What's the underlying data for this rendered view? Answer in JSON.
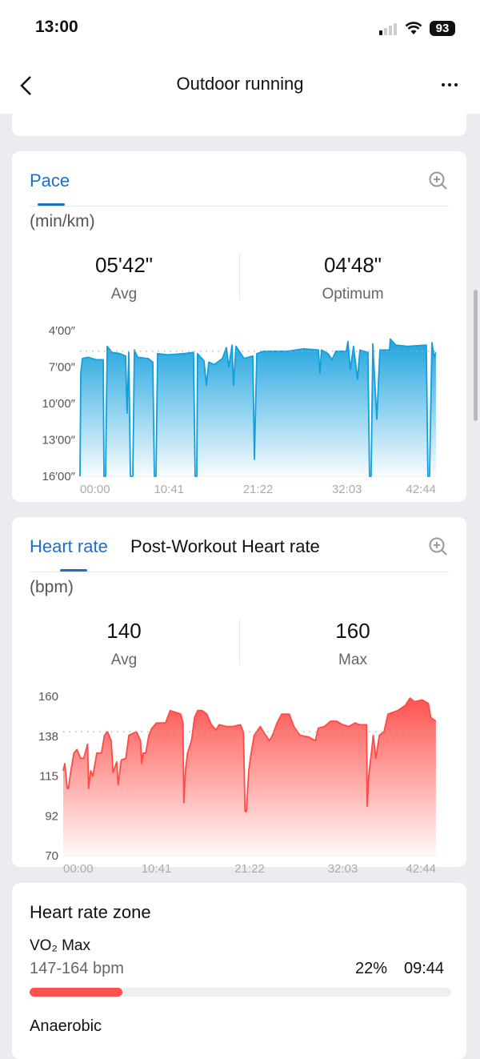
{
  "status_bar": {
    "time": "13:00",
    "battery": "93"
  },
  "header": {
    "title": "Outdoor running"
  },
  "pace": {
    "tab": "Pace",
    "unit": "(min/km)",
    "avg_value": "05'42\"",
    "avg_label": "Avg",
    "opt_value": "04'48\"",
    "opt_label": "Optimum"
  },
  "heart": {
    "tab": "Heart rate",
    "tab2": "Post-Workout Heart rate",
    "unit": "(bpm)",
    "avg_value": "140",
    "avg_label": "Avg",
    "max_value": "160",
    "max_label": "Max"
  },
  "zone": {
    "title": "Heart rate zone",
    "items": [
      {
        "name": "VO₂ Max",
        "range": "147-164 bpm",
        "percent": "22%",
        "duration": "09:44",
        "fraction": 0.22,
        "color": "#fd524f"
      },
      {
        "name": "Anaerobic"
      }
    ]
  },
  "colors": {
    "accent": "#1a6fd0",
    "pace": "#129fde",
    "heart": "#ff4a45"
  },
  "chart_data": [
    {
      "type": "area",
      "title": "Pace",
      "ylabel": "min/km",
      "ylim": [
        4,
        16
      ],
      "inverted": true,
      "avg": 5.7,
      "yticks": [
        "4′00″",
        "7′00″",
        "10′00″",
        "13′00″",
        "16′00″"
      ],
      "ytick_values": [
        4,
        7,
        10,
        13,
        16
      ],
      "xticks": [
        "00:00",
        "10:41",
        "21:22",
        "32:03",
        "42:44"
      ],
      "xlim": [
        0,
        42.73
      ],
      "x": [
        0,
        0.1,
        0.29,
        0.96,
        1.92,
        2.78,
        2.88,
        3.07,
        3.26,
        3.84,
        4.8,
        5.47,
        5.66,
        5.86,
        6.05,
        6.34,
        6.53,
        6.91,
        8.16,
        8.74,
        8.93,
        9.12,
        9.31,
        10.56,
        12.48,
        13.63,
        13.82,
        14.02,
        14.11,
        14.88,
        15.17,
        15.46,
        16.13,
        17.09,
        17.57,
        17.86,
        18.24,
        18.43,
        18.72,
        19.68,
        20.74,
        20.93,
        21.22,
        22.08,
        24.96,
        26.88,
        28.61,
        28.8,
        28.99,
        29.76,
        30.24,
        30.72,
        31.97,
        32.16,
        32.45,
        32.83,
        33.31,
        33.6,
        34.56,
        34.75,
        34.94,
        35.14,
        35.62,
        36.0,
        37.15,
        37.25,
        37.92,
        39.36,
        41.57,
        41.76,
        41.95,
        42.24,
        42.53,
        42.72
      ],
      "y": [
        16,
        7.5,
        6.3,
        6.2,
        6.4,
        6.4,
        16,
        16,
        5.3,
        5.8,
        5.9,
        6.1,
        10.8,
        5.8,
        16,
        16,
        5.6,
        6.2,
        6.3,
        6.6,
        16,
        16,
        5.9,
        6.0,
        5.9,
        5.8,
        16,
        16,
        5.9,
        6.5,
        8.5,
        6.6,
        6.8,
        6.3,
        5.4,
        7.0,
        5.2,
        8.5,
        5.3,
        6.3,
        6.1,
        14.6,
        5.9,
        5.7,
        5.7,
        5.5,
        5.6,
        7.5,
        5.6,
        5.9,
        6.4,
        5.7,
        5.7,
        4.9,
        7.2,
        5.3,
        8.0,
        5.6,
        5.8,
        16,
        16,
        5.1,
        11.3,
        5.6,
        5.6,
        4.7,
        5.2,
        5.3,
        5.2,
        16,
        16,
        5.0,
        6.2,
        5.8
      ]
    },
    {
      "type": "area",
      "title": "Heart rate",
      "ylabel": "bpm",
      "ylim": [
        70,
        160
      ],
      "avg": 140,
      "yticks": [
        "160",
        "138",
        "115",
        "92",
        "70"
      ],
      "ytick_values": [
        160,
        137.5,
        115,
        92.5,
        70
      ],
      "xticks": [
        "00:00",
        "10:41",
        "21:22",
        "32:03",
        "42:44"
      ],
      "xlim": [
        0,
        42.73
      ],
      "x": [
        0,
        0.18,
        0.46,
        0.6,
        0.88,
        1.23,
        1.58,
        2.0,
        2.35,
        2.8,
        2.91,
        3.15,
        3.4,
        3.85,
        4.38,
        4.73,
        5.08,
        5.5,
        5.71,
        6.13,
        6.3,
        6.65,
        7.18,
        7.53,
        8.4,
        8.86,
        9.0,
        9.18,
        9.46,
        9.81,
        10.16,
        10.68,
        11.73,
        12.26,
        13.48,
        13.73,
        13.83,
        14.01,
        14.25,
        14.71,
        15.06,
        15.41,
        15.93,
        16.46,
        16.98,
        17.51,
        17.86,
        18.74,
        19.44,
        20.31,
        20.66,
        20.84,
        21.01,
        21.26,
        21.54,
        21.89,
        22.59,
        22.94,
        23.64,
        23.99,
        24.51,
        25.04,
        25.91,
        26.44,
        27.14,
        28.19,
        28.89,
        29.24,
        29.94,
        30.64,
        31.34,
        32.04,
        32.74,
        33.44,
        33.97,
        34.77,
        34.84,
        35.02,
        35.37,
        35.54,
        35.83,
        36.24,
        36.77,
        37.23,
        38.35,
        39.22,
        39.75,
        40.27,
        41.15,
        41.85,
        42.13,
        42.72
      ],
      "y": [
        118,
        122,
        108,
        108,
        118,
        128,
        130,
        125,
        125,
        133,
        108,
        118,
        115,
        128,
        128,
        138,
        140,
        135,
        117,
        123,
        110,
        124,
        125,
        138,
        140,
        135,
        122,
        128,
        128,
        138,
        142,
        145,
        145,
        152,
        150,
        145,
        100,
        118,
        128,
        135,
        148,
        152,
        152,
        150,
        144,
        141,
        144,
        143,
        143,
        144,
        140,
        95,
        95,
        118,
        128,
        138,
        143,
        140,
        135,
        138,
        145,
        150,
        150,
        143,
        138,
        137,
        135,
        142,
        143,
        146,
        146,
        144,
        143,
        145,
        144,
        144,
        98,
        115,
        130,
        138,
        125,
        138,
        140,
        150,
        152,
        155,
        159,
        157,
        158,
        156,
        148,
        146
      ]
    }
  ]
}
